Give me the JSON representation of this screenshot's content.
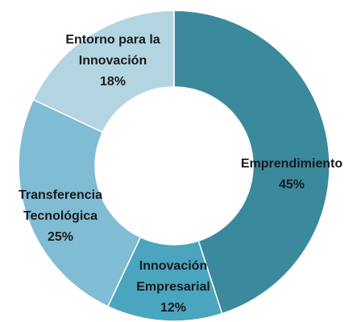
{
  "chart_data": {
    "type": "donut",
    "categories": [
      "Emprendimiento",
      "Innovación Empresarial",
      "Transferencia Tecnológica",
      "Entorno para la Innovación"
    ],
    "values": [
      45,
      12,
      25,
      18
    ],
    "value_labels": [
      "45%",
      "12%",
      "25%",
      "18%"
    ],
    "colors": [
      "#3b899d",
      "#4aa5bf",
      "#80bcd4",
      "#b3d5e2"
    ]
  }
}
